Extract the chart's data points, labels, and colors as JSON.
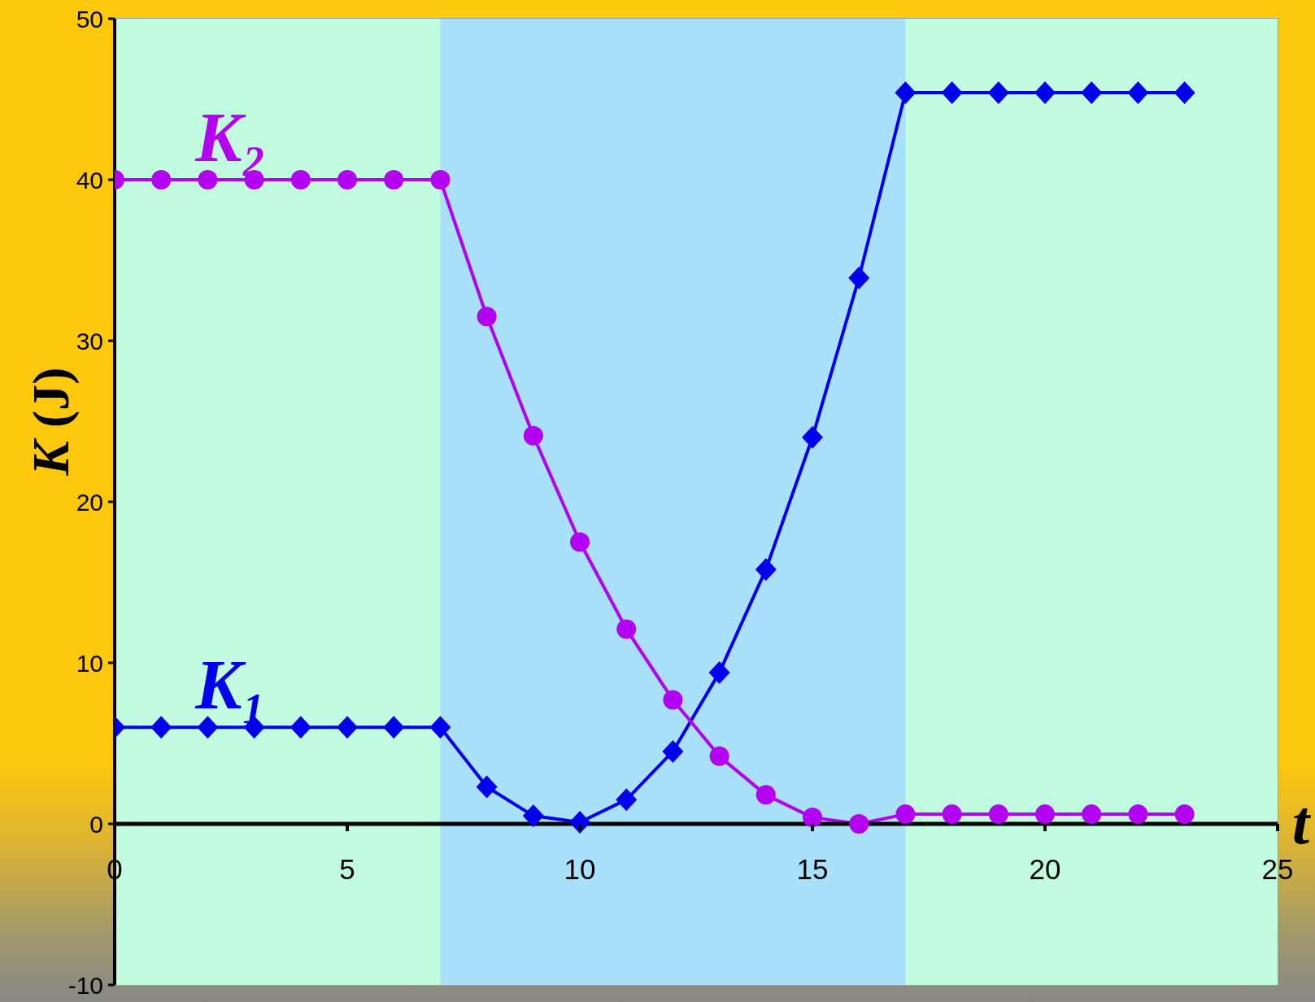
{
  "chart_data": {
    "type": "line",
    "xlabel": "t",
    "ylabel": "K (J)",
    "x": [
      0,
      1,
      2,
      3,
      4,
      5,
      6,
      7,
      8,
      9,
      10,
      11,
      12,
      13,
      14,
      15,
      16,
      17,
      18,
      19,
      20,
      21,
      22,
      23
    ],
    "series": [
      {
        "name": "K₁",
        "color": "#0000ee",
        "marker": "diamond",
        "values": [
          6,
          6,
          6,
          6,
          6,
          6,
          6,
          6,
          2.3,
          0.5,
          0.1,
          1.5,
          4.5,
          9.4,
          15.8,
          24,
          33.9,
          45.4,
          45.4,
          45.4,
          45.4,
          45.4,
          45.4,
          45.4
        ]
      },
      {
        "name": "K₂",
        "color": "#b400f0",
        "marker": "circle",
        "values": [
          40,
          40,
          40,
          40,
          40,
          40,
          40,
          40,
          31.5,
          24.1,
          17.5,
          12.1,
          7.7,
          4.2,
          1.8,
          0.4,
          0,
          0.6,
          0.6,
          0.6,
          0.6,
          0.6,
          0.6,
          0.6
        ]
      }
    ],
    "xlim": [
      0,
      25
    ],
    "xticks": [
      0,
      5,
      10,
      15,
      20,
      25
    ],
    "ylim": [
      -10,
      50
    ],
    "yticks": [
      -10,
      0,
      10,
      20,
      30,
      40,
      50
    ],
    "bands": [
      {
        "axis": "x",
        "from": 7,
        "to": 17,
        "color": "#a8e1f9"
      }
    ]
  }
}
